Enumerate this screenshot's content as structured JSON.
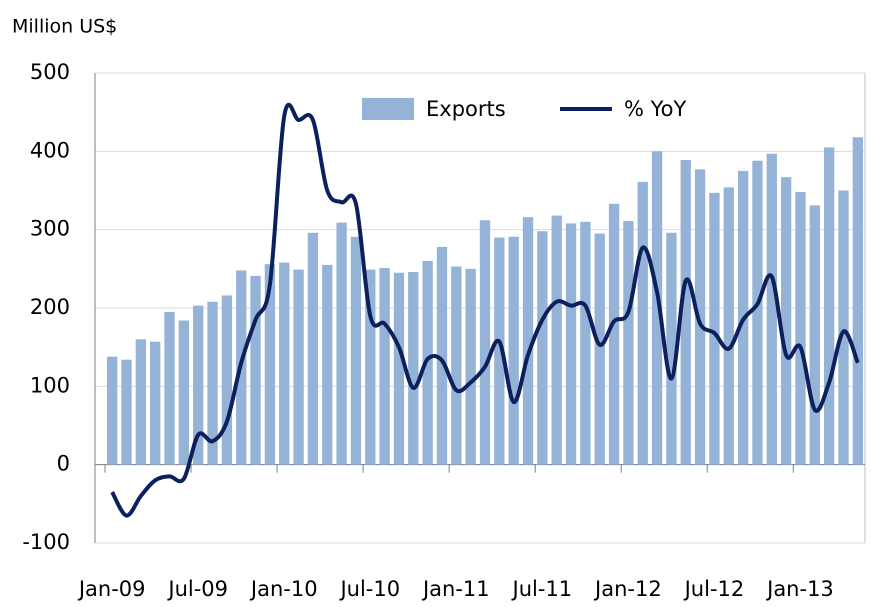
{
  "chart_data": {
    "type": "bar-line",
    "y_axis_label": "Million US$",
    "categories": [
      "Jan-09",
      null,
      null,
      null,
      null,
      null,
      "Jul-09",
      null,
      null,
      null,
      null,
      null,
      "Jan-10",
      null,
      null,
      null,
      null,
      null,
      "Jul-10",
      null,
      null,
      null,
      null,
      null,
      "Jan-11",
      null,
      null,
      null,
      null,
      null,
      "Jul-11",
      null,
      null,
      null,
      null,
      null,
      "Jan-12",
      null,
      null,
      null,
      null,
      null,
      "Jul-12",
      null,
      null,
      null,
      null,
      null,
      "Jan-13",
      null,
      null,
      null,
      null
    ],
    "series": [
      {
        "name": "Exports",
        "kind": "bar",
        "color": "#95b3d7",
        "values": [
          138,
          134,
          160,
          157,
          195,
          184,
          203,
          208,
          216,
          248,
          241,
          256,
          258,
          249,
          296,
          255,
          309,
          291,
          249,
          251,
          245,
          246,
          260,
          278,
          253,
          250,
          312,
          290,
          291,
          316,
          298,
          318,
          308,
          310,
          295,
          333,
          311,
          361,
          400,
          296,
          389,
          377,
          347,
          354,
          375,
          388,
          397,
          367,
          348,
          331,
          405,
          350,
          418
        ]
      },
      {
        "name": "% YoY",
        "kind": "line",
        "color": "#0d1f5c",
        "values": [
          -35,
          -65,
          -40,
          -20,
          -15,
          -18,
          38,
          30,
          55,
          130,
          185,
          230,
          445,
          440,
          440,
          350,
          335,
          333,
          190,
          180,
          150,
          98,
          135,
          133,
          95,
          105,
          125,
          157,
          80,
          140,
          185,
          208,
          203,
          203,
          153,
          183,
          195,
          277,
          220,
          110,
          235,
          180,
          168,
          148,
          185,
          205,
          240,
          140,
          150,
          70,
          105,
          170,
          130
        ]
      }
    ],
    "ylim": [
      -100,
      500
    ],
    "yticks": [
      -100,
      0,
      100,
      200,
      300,
      400,
      500
    ],
    "grid": true
  }
}
